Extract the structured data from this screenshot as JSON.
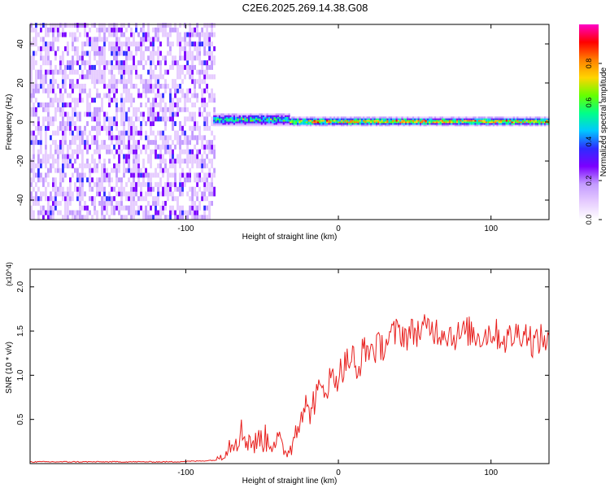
{
  "title": "C2E6.2025.269.14.38.G08",
  "chart_data": [
    {
      "type": "heatmap",
      "title": "C2E6.2025.269.14.38.G08",
      "xlabel": "Height of straight line (km)",
      "ylabel": "Frequency (Hz)",
      "xlim": [
        -202,
        138
      ],
      "ylim": [
        -50,
        50
      ],
      "x_ticks": [
        -100,
        0,
        100
      ],
      "y_ticks": [
        -40,
        -20,
        0,
        20,
        40
      ],
      "colorbar": {
        "label": "Normalized spectral amplitude",
        "range": [
          0,
          1
        ],
        "ticks": [
          0.0,
          0.2,
          0.4,
          0.6,
          0.8
        ],
        "colors": [
          "#ffffff",
          "#e6ccff",
          "#c39bff",
          "#7b00ff",
          "#2e2bff",
          "#00c8ff",
          "#00ff88",
          "#66ff00",
          "#ffd500",
          "#ff8000",
          "#ff0000",
          "#ff00c8"
        ]
      },
      "regions": [
        {
          "x_range": [
            -202,
            -82
          ],
          "kind": "noise",
          "amplitude_range": [
            0.0,
            0.3
          ]
        },
        {
          "x_range": [
            -82,
            -32
          ],
          "kind": "signal",
          "center_hz": 1,
          "width_hz": 6,
          "peak_amplitude": 0.7
        },
        {
          "x_range": [
            -32,
            138
          ],
          "kind": "signal",
          "center_hz": 0,
          "width_hz": 4,
          "peak_amplitude": 1.0
        }
      ],
      "grid": false
    },
    {
      "type": "line",
      "xlabel": "Height of straight line (km)",
      "ylabel": "SNR (10 * v/v)",
      "y_multiplier": "(x10^4)",
      "xlim": [
        -202,
        138
      ],
      "ylim": [
        0,
        2.2
      ],
      "x_ticks": [
        -100,
        0,
        100
      ],
      "y_ticks": [
        0.5,
        1.0,
        1.5,
        2.0
      ],
      "y_tick_labels": [
        "0.5",
        "1.0",
        "1.5",
        "2.0"
      ],
      "color": "#e8201e",
      "series": [
        {
          "name": "",
          "x": [
            -202,
            -190,
            -170,
            -150,
            -130,
            -110,
            -90,
            -80,
            -75,
            -70,
            -65,
            -60,
            -55,
            -50,
            -45,
            -40,
            -35,
            -30,
            -28,
            -25,
            -22,
            -20,
            -15,
            -10,
            -5,
            0,
            5,
            10,
            12,
            15,
            20,
            25,
            30,
            35,
            40,
            45,
            50,
            55,
            60,
            65,
            70,
            75,
            80,
            85,
            90,
            95,
            100,
            105,
            110,
            115,
            120,
            125,
            128,
            130,
            132,
            135,
            138
          ],
          "y": [
            0.02,
            0.02,
            0.02,
            0.02,
            0.02,
            0.02,
            0.03,
            0.04,
            0.12,
            0.25,
            0.35,
            0.3,
            0.22,
            0.3,
            0.25,
            0.28,
            0.12,
            0.2,
            0.45,
            0.55,
            0.7,
            0.55,
            0.75,
            0.85,
            0.95,
            1.0,
            1.15,
            1.2,
            0.9,
            1.25,
            1.3,
            1.3,
            1.35,
            1.45,
            1.5,
            1.45,
            1.5,
            1.5,
            1.55,
            1.5,
            1.5,
            1.45,
            1.45,
            1.5,
            1.45,
            1.45,
            1.5,
            1.45,
            1.4,
            1.45,
            1.5,
            1.45,
            1.35,
            1.4,
            1.4,
            1.4,
            1.45
          ]
        }
      ],
      "grid": false
    }
  ]
}
